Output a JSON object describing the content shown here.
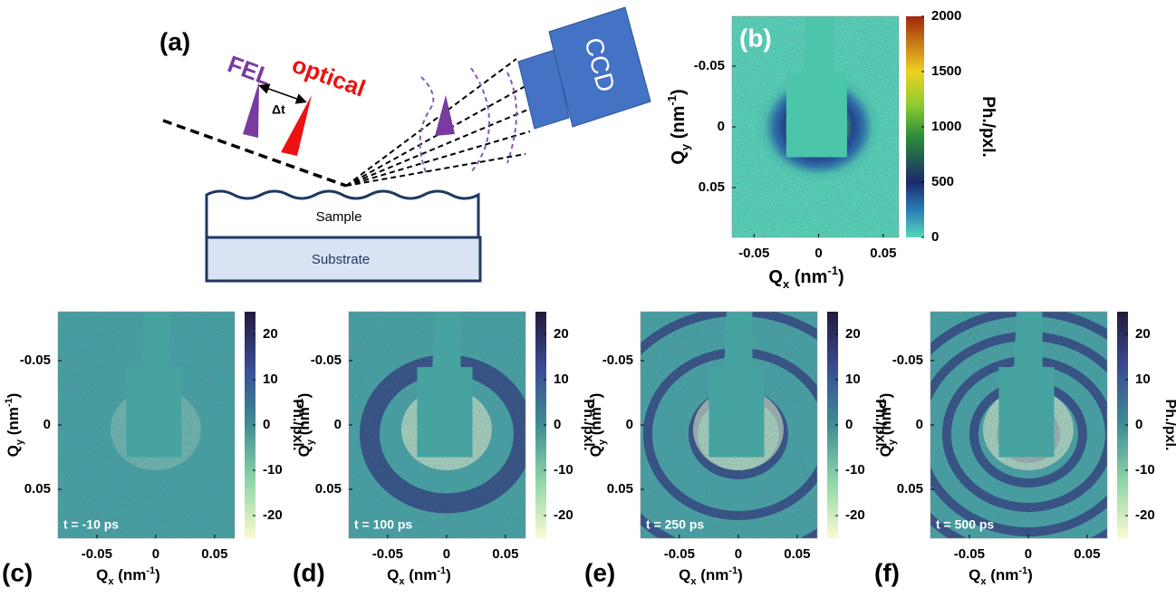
{
  "figure": {
    "panel_a": {
      "label": "(a)",
      "beam_fel": "FEL",
      "beam_optical": "optical",
      "delay": "Δt",
      "detector": "CCD",
      "layer_top": "Sample",
      "layer_bottom": "Substrate"
    },
    "x_label": {
      "symbol": "Q",
      "subscript": "x",
      "unit": " (nm",
      "exponent": "-1",
      "close": ")"
    },
    "y_label": {
      "symbol": "Q",
      "subscript": "y",
      "unit": " (nm",
      "exponent": "-1",
      "close": ")"
    },
    "colorbar_label": "Ph./pxl.",
    "panels": [
      {
        "label": "(b)",
        "xlim": [
          -0.067,
          0.062
        ],
        "ylim": [
          -0.091,
          0.091
        ],
        "xticks": [
          -0.05,
          0,
          0.05
        ],
        "yticks": [
          -0.05,
          0,
          0.05
        ],
        "clim": [
          0,
          2000
        ],
        "cticks": [
          0,
          500,
          1000,
          1500,
          2000
        ]
      },
      {
        "label": "(c)",
        "time": "t = -10 ps",
        "xlim": [
          -0.083,
          0.067
        ],
        "ylim": [
          -0.088,
          0.088
        ],
        "xticks": [
          -0.05,
          0,
          0.05
        ],
        "yticks": [
          -0.05,
          0,
          0.05
        ],
        "clim": [
          -25,
          25
        ],
        "cticks": [
          -20,
          -10,
          0,
          10,
          20
        ]
      },
      {
        "label": "(d)",
        "time": "t = 100 ps",
        "xlim": [
          -0.083,
          0.067
        ],
        "ylim": [
          -0.088,
          0.088
        ],
        "xticks": [
          -0.05,
          0,
          0.05
        ],
        "yticks": [
          -0.05,
          0,
          0.05
        ],
        "clim": [
          -25,
          25
        ],
        "cticks": [
          -20,
          -10,
          0,
          10,
          20
        ]
      },
      {
        "label": "(e)",
        "time": "t = 250 ps",
        "xlim": [
          -0.083,
          0.067
        ],
        "ylim": [
          -0.088,
          0.088
        ],
        "xticks": [
          -0.05,
          0,
          0.05
        ],
        "yticks": [
          -0.05,
          0,
          0.05
        ],
        "clim": [
          -25,
          25
        ],
        "cticks": [
          -20,
          -10,
          0,
          10,
          20
        ]
      },
      {
        "label": "(f)",
        "time": "t = 500 ps",
        "xlim": [
          -0.083,
          0.067
        ],
        "ylim": [
          -0.088,
          0.088
        ],
        "xticks": [
          -0.05,
          0,
          0.05
        ],
        "yticks": [
          -0.05,
          0,
          0.05
        ],
        "clim": [
          -25,
          25
        ],
        "cticks": [
          -20,
          -10,
          0,
          10,
          20
        ]
      }
    ]
  }
}
